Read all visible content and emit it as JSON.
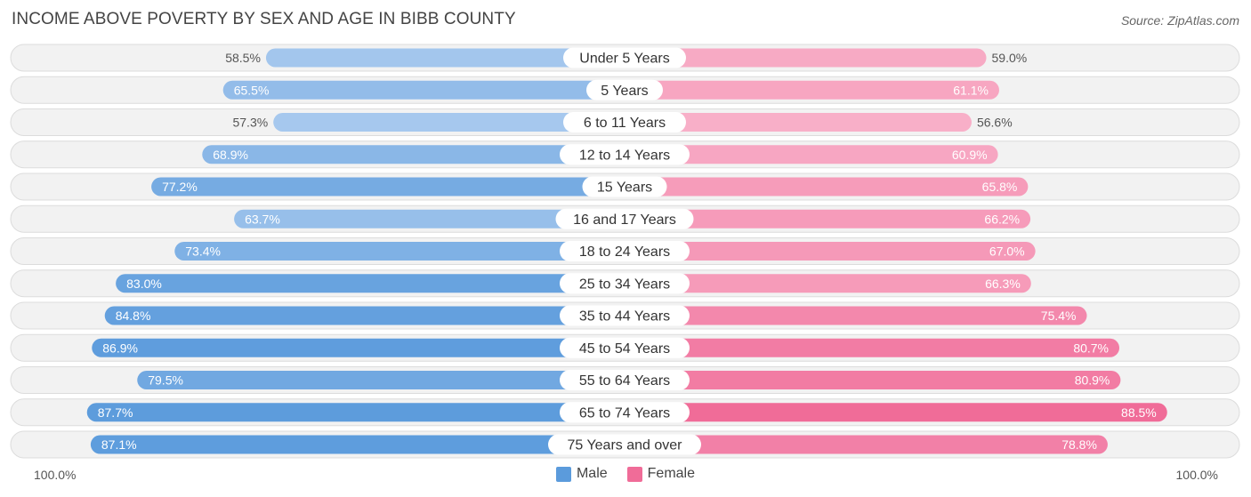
{
  "header": {
    "title": "INCOME ABOVE POVERTY BY SEX AND AGE IN BIBB COUNTY",
    "source": "Source: ZipAtlas.com"
  },
  "colors": {
    "male_full": "#5b9bdc",
    "male_light": "#a8c9ee",
    "female_full": "#f06c98",
    "female_light": "#f8afc8",
    "row_bg": "#f2f2f2",
    "row_border": "#dcdcdc"
  },
  "axis": {
    "left_label": "100.0%",
    "right_label": "100.0%"
  },
  "legend": {
    "male_label": "Male",
    "female_label": "Female"
  },
  "chart_data": {
    "type": "bar",
    "orientation": "horizontal-diverging",
    "title": "INCOME ABOVE POVERTY BY SEX AND AGE IN BIBB COUNTY",
    "xlim": [
      -100,
      100
    ],
    "categories": [
      "Under 5 Years",
      "5 Years",
      "6 to 11 Years",
      "12 to 14 Years",
      "15 Years",
      "16 and 17 Years",
      "18 to 24 Years",
      "25 to 34 Years",
      "35 to 44 Years",
      "45 to 54 Years",
      "55 to 64 Years",
      "65 to 74 Years",
      "75 Years and over"
    ],
    "series": [
      {
        "name": "Male",
        "values": [
          58.5,
          65.5,
          57.3,
          68.9,
          77.2,
          63.7,
          73.4,
          83.0,
          84.8,
          86.9,
          79.5,
          87.7,
          87.1
        ],
        "labels": [
          "58.5%",
          "65.5%",
          "57.3%",
          "68.9%",
          "77.2%",
          "63.7%",
          "73.4%",
          "83.0%",
          "84.8%",
          "86.9%",
          "79.5%",
          "87.7%",
          "87.1%"
        ]
      },
      {
        "name": "Female",
        "values": [
          59.0,
          61.1,
          56.6,
          60.9,
          65.8,
          66.2,
          67.0,
          66.3,
          75.4,
          80.7,
          80.9,
          88.5,
          78.8
        ],
        "labels": [
          "59.0%",
          "61.1%",
          "56.6%",
          "60.9%",
          "65.8%",
          "66.2%",
          "67.0%",
          "66.3%",
          "75.4%",
          "80.7%",
          "80.9%",
          "88.5%",
          "78.8%"
        ]
      }
    ]
  }
}
